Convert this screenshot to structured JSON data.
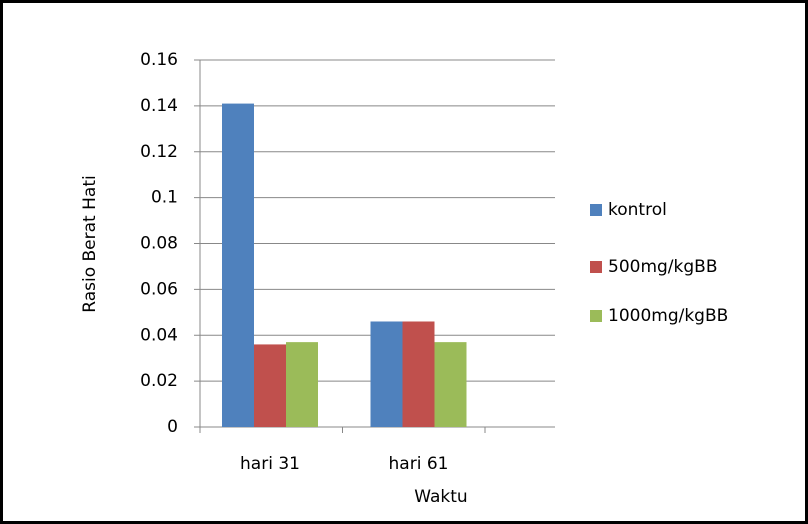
{
  "chart_data": {
    "type": "bar",
    "x_label": "Waktu",
    "y_label": "Rasio Berat Hati",
    "categories": [
      "hari 31",
      "hari 61"
    ],
    "series": [
      {
        "name": "kontrol",
        "color": "#4f81bd",
        "values": [
          0.141,
          0.046
        ]
      },
      {
        "name": "500mg/kgBB",
        "color": "#c0504d",
        "values": [
          0.036,
          0.046
        ]
      },
      {
        "name": "1000mg/kgBB",
        "color": "#9bbb59",
        "values": [
          0.037,
          0.037
        ]
      }
    ],
    "ylim": [
      0,
      0.16
    ],
    "yticks": [
      0,
      0.02,
      0.04,
      0.06,
      0.08,
      0.1,
      0.12,
      0.14,
      0.16
    ],
    "grid": true,
    "legend": "right"
  }
}
